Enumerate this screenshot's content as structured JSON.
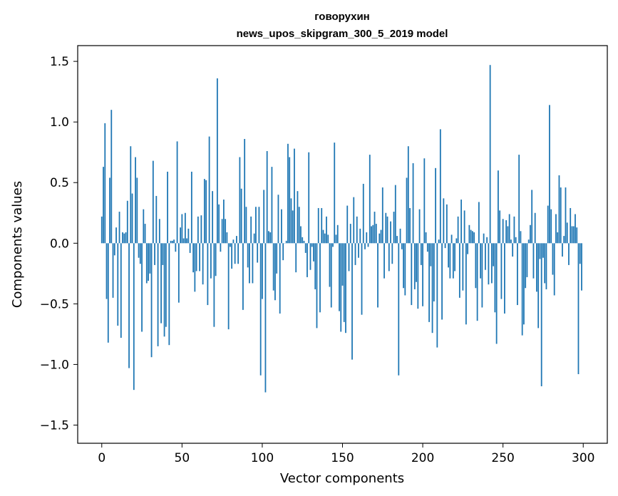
{
  "chart_data": {
    "type": "bar",
    "title_lines": [
      "говорухин",
      "news_upos_skipgram_300_5_2019 model"
    ],
    "xlabel": "Vector components",
    "ylabel": "Components values",
    "xlim": [
      -15,
      315
    ],
    "ylim": [
      -1.65,
      1.63
    ],
    "xticks": [
      0,
      50,
      100,
      150,
      200,
      250,
      300
    ],
    "yticks": [
      -1.5,
      -1.0,
      -0.5,
      0.0,
      0.5,
      1.0,
      1.5
    ],
    "ytick_labels": [
      "−1.5",
      "−1.0",
      "−0.5",
      "0.0",
      "0.5",
      "1.0",
      "1.5"
    ],
    "grid": false,
    "bar_color": "#1f77b4",
    "values": [
      0.22,
      0.63,
      0.99,
      -0.46,
      -0.82,
      0.54,
      1.1,
      -0.45,
      -0.1,
      0.13,
      -0.68,
      0.26,
      -0.78,
      0.09,
      0.08,
      0.09,
      0.35,
      -1.03,
      0.8,
      0.41,
      -1.21,
      0.71,
      0.54,
      -0.12,
      -0.17,
      -0.73,
      0.28,
      0.16,
      -0.33,
      -0.31,
      -0.25,
      -0.94,
      0.68,
      -0.18,
      0.39,
      -0.85,
      0.2,
      -0.66,
      -0.18,
      -0.77,
      -0.69,
      0.59,
      -0.84,
      0.02,
      0.02,
      0.03,
      -0.07,
      0.84,
      -0.49,
      0.13,
      0.24,
      0.04,
      0.25,
      0.04,
      0.12,
      -0.08,
      0.59,
      -0.24,
      -0.4,
      -0.23,
      0.22,
      -0.23,
      0.23,
      -0.34,
      0.53,
      0.52,
      -0.51,
      0.88,
      -0.29,
      0.43,
      -0.69,
      -0.27,
      1.36,
      0.32,
      -0.07,
      0.2,
      0.36,
      0.2,
      0.09,
      -0.71,
      -0.03,
      -0.21,
      0.03,
      -0.17,
      0.06,
      -0.17,
      0.71,
      0.45,
      -0.55,
      0.86,
      0.3,
      -0.2,
      -0.33,
      0.22,
      -0.33,
      0.08,
      0.3,
      -0.16,
      0.3,
      -1.09,
      -0.46,
      0.44,
      -1.23,
      0.76,
      0.1,
      0.09,
      0.63,
      -0.39,
      -0.47,
      -0.25,
      0.4,
      -0.58,
      0.28,
      -0.14,
      0.0,
      0.02,
      0.82,
      0.71,
      0.37,
      0.27,
      0.78,
      -0.24,
      0.43,
      0.3,
      0.14,
      0.05,
      0.02,
      -0.08,
      -0.28,
      0.75,
      -0.22,
      -0.03,
      -0.15,
      -0.38,
      -0.7,
      0.29,
      -0.57,
      0.29,
      0.11,
      0.08,
      0.22,
      0.07,
      -0.36,
      -0.53,
      -0.03,
      0.83,
      0.07,
      0.15,
      -0.56,
      -0.73,
      -0.35,
      -0.65,
      -0.74,
      0.31,
      -0.23,
      0.16,
      -0.96,
      0.38,
      -0.18,
      0.22,
      -0.12,
      0.12,
      -0.59,
      0.49,
      -0.05,
      0.09,
      -0.03,
      0.73,
      0.14,
      0.15,
      0.26,
      0.16,
      -0.53,
      0.08,
      0.11,
      0.46,
      -0.29,
      0.25,
      0.22,
      -0.23,
      0.18,
      -0.17,
      0.26,
      0.48,
      0.06,
      -1.09,
      0.12,
      -0.05,
      -0.37,
      -0.43,
      0.54,
      0.8,
      0.29,
      -0.51,
      0.66,
      -0.38,
      -0.32,
      -0.54,
      0.28,
      -0.18,
      -0.52,
      0.7,
      0.09,
      -0.07,
      -0.65,
      -0.19,
      -0.74,
      -0.48,
      0.62,
      -0.86,
      0.03,
      0.94,
      -0.63,
      0.37,
      -0.04,
      0.32,
      -0.2,
      -0.29,
      0.07,
      -0.29,
      -0.23,
      0.04,
      0.22,
      -0.45,
      0.36,
      -0.39,
      0.27,
      -0.67,
      -0.09,
      0.15,
      0.11,
      0.1,
      0.09,
      -0.37,
      -0.64,
      0.34,
      -0.29,
      -0.53,
      0.08,
      -0.22,
      0.05,
      -0.34,
      1.47,
      -0.33,
      -0.19,
      -0.57,
      -0.83,
      0.6,
      0.27,
      -0.46,
      0.2,
      -0.58,
      0.19,
      0.14,
      0.24,
      0.03,
      -0.11,
      0.22,
      0.05,
      -0.51,
      0.73,
      0.1,
      -0.76,
      -0.67,
      -0.37,
      -0.28,
      0.03,
      0.15,
      0.44,
      -0.29,
      0.25,
      -0.4,
      -0.7,
      -0.13,
      -1.18,
      -0.12,
      -0.33,
      -0.38,
      0.31,
      1.14,
      0.28,
      -0.26,
      -0.43,
      0.24,
      0.09,
      0.56,
      0.46,
      -0.11,
      0.06,
      0.46,
      0.17,
      -0.18,
      0.29,
      0.14,
      0.14,
      0.24,
      0.13,
      -1.08,
      -0.17,
      -0.39
    ]
  }
}
